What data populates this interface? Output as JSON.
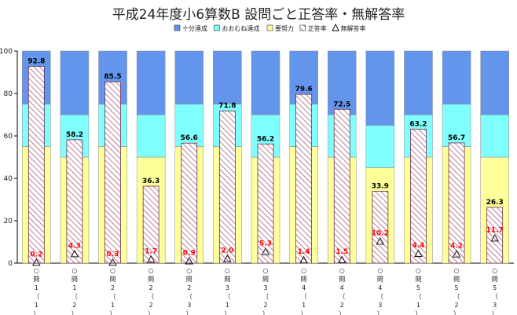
{
  "chart_data": {
    "type": "bar",
    "title": "平成24年度小6算数B 設問ごと正答率・無解答率",
    "ylim": [
      0,
      100
    ],
    "yticks": [
      0,
      20,
      40,
      60,
      80,
      100
    ],
    "grid": false,
    "legend_position": "top-right",
    "legend": [
      {
        "label": "十分達成",
        "color": "#6495ed",
        "kind": "box"
      },
      {
        "label": "おおむね達成",
        "color": "#80ffff",
        "kind": "box"
      },
      {
        "label": "要努力",
        "color": "#ffff99",
        "kind": "box"
      },
      {
        "label": "正答率",
        "color": "#ffffff",
        "kind": "hatch"
      },
      {
        "label": "無解答率",
        "color": "#000000",
        "kind": "triangle"
      }
    ],
    "categories": [
      [
        "○",
        "問",
        "1",
        "（",
        "1",
        "）"
      ],
      [
        "○",
        "問",
        "1",
        "（",
        "2",
        "）"
      ],
      [
        "○",
        "問",
        "2",
        "（",
        "1",
        "）"
      ],
      [
        "○",
        "問",
        "2",
        "（",
        "2",
        "）"
      ],
      [
        "○",
        "問",
        "2",
        "（",
        "3",
        "）"
      ],
      [
        "○",
        "問",
        "3",
        "（",
        "1",
        "）"
      ],
      [
        "○",
        "問",
        "3",
        "（",
        "2",
        "）"
      ],
      [
        "○",
        "問",
        "4",
        "（",
        "1",
        "）"
      ],
      [
        "○",
        "問",
        "4",
        "（",
        "2",
        "）"
      ],
      [
        "○",
        "問",
        "4",
        "（",
        "3",
        "）"
      ],
      [
        "○",
        "問",
        "5",
        "（",
        "1",
        "）"
      ],
      [
        "○",
        "問",
        "5",
        "（",
        "2",
        "）"
      ],
      [
        "○",
        "問",
        "5",
        "（",
        "3",
        "）"
      ]
    ],
    "bands": [
      {
        "yoryoku": 55,
        "oomune": 75
      },
      {
        "yoryoku": 50,
        "oomune": 70
      },
      {
        "yoryoku": 55,
        "oomune": 75
      },
      {
        "yoryoku": 50,
        "oomune": 70
      },
      {
        "yoryoku": 55,
        "oomune": 75
      },
      {
        "yoryoku": 55,
        "oomune": 75
      },
      {
        "yoryoku": 50,
        "oomune": 70
      },
      {
        "yoryoku": 55,
        "oomune": 75
      },
      {
        "yoryoku": 50,
        "oomune": 70
      },
      {
        "yoryoku": 45,
        "oomune": 65
      },
      {
        "yoryoku": 50,
        "oomune": 70
      },
      {
        "yoryoku": 55,
        "oomune": 75
      },
      {
        "yoryoku": 50,
        "oomune": 70
      }
    ],
    "series": [
      {
        "name": "正答率",
        "values": [
          92.8,
          58.2,
          85.5,
          36.3,
          56.6,
          71.8,
          56.2,
          79.6,
          72.5,
          33.9,
          63.2,
          56.7,
          26.3
        ]
      },
      {
        "name": "無解答率",
        "values": [
          0.2,
          4.3,
          0.3,
          1.7,
          0.9,
          2.0,
          5.3,
          1.4,
          1.5,
          10.2,
          4.4,
          4.2,
          11.7
        ]
      }
    ],
    "colors": {
      "judo": "#6495ed",
      "oomune": "#80ffff",
      "yoryoku": "#ffff99",
      "hatch": "#9c4a6e",
      "nore_text": "#ff0000"
    }
  }
}
